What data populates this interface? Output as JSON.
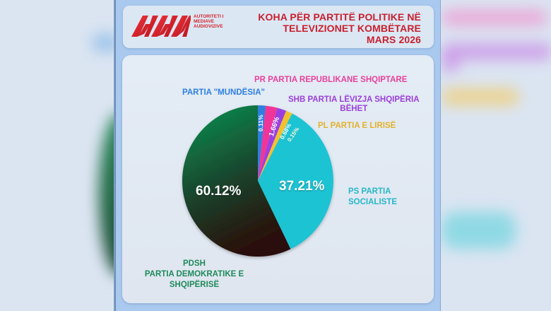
{
  "header": {
    "logo": {
      "icon": "ama-logo-icon",
      "text_lines": [
        "AUTORITETI I",
        "MEDIAVE",
        "AUDIOVIZIVE"
      ],
      "color": "#d4252d"
    },
    "title_lines": [
      "KOHA PËR PARTITË POLITIKE NË",
      "TELEVIZIONET KOMBËTARE",
      "MARS 2026"
    ],
    "title_color": "#c8202d"
  },
  "chart_data": {
    "type": "pie",
    "title": "KOHA PËR PARTITË POLITIKE NË TELEVIZIONET KOMBËTARE MARS 2026",
    "start_angle": "top, clockwise",
    "slices": [
      {
        "label": "PARTIA \"MUNDËSIA\"",
        "value": 0.11,
        "display": "0.11%",
        "color": "#2d7fe0"
      },
      {
        "label": "PR PARTIA REPUBLIKANE SHQIPTARE",
        "value": 1.66,
        "display": "1.66%",
        "color": "#f0359a"
      },
      {
        "label": "SHB PARTIA LËVIZJA SHQIPËRIA BËHET",
        "value": 0.68,
        "display": "0.68%",
        "color": "#9b3fe0"
      },
      {
        "label": "PL PARTIA E LIRISË",
        "value": 0.15,
        "display": "0.15%",
        "color": "#f2c12e"
      },
      {
        "label": "PS PARTIA SOCIALISTE",
        "value": 37.21,
        "display": "37.21%",
        "color": "#1fc3d3"
      },
      {
        "label": "PDSH PARTIA DEMOKRATIKE E SHQIPËRISË",
        "value": 60.12,
        "display": "60.12%",
        "color_gradient": [
          "#0d7a45",
          "#2a0f08"
        ]
      }
    ],
    "legend_position": "labels around pie"
  },
  "labels": {
    "mundesia": "PARTIA \"MUNDËSIA\"",
    "pr": "PR PARTIA REPUBLIKANE SHQIPTARE",
    "shb_line1": "SHB PARTIA LËVIZJA SHQIPËRIA",
    "shb_line2": "BËHET",
    "pl": "PL PARTIA E LIRISË",
    "ps_line1": "PS PARTIA",
    "ps_line2": "SOCIALISTE",
    "pdsh_line1": "PDSH",
    "pdsh_line2": "PARTIA DEMOKRATIKE E",
    "pdsh_line3": "SHQIPËRISË"
  },
  "percentages": {
    "mundesia": "0.11%",
    "pr": "1.66%",
    "shb": "0.68%",
    "pl": "0.15%",
    "ps": "37.21%",
    "pdsh": "60.12%"
  }
}
